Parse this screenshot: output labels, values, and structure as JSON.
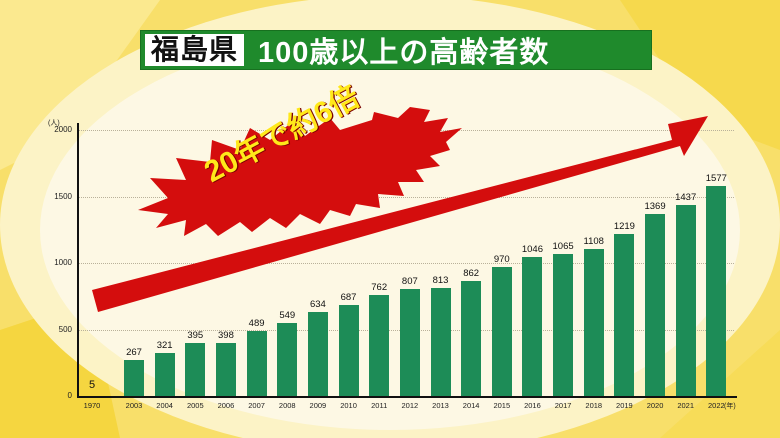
{
  "title": {
    "prefecture": "福島県",
    "main": "100歳以上の高齢者数"
  },
  "callout": {
    "text": "20年で約6倍"
  },
  "colors": {
    "bar": "#1d8c57",
    "title_bg": "#1f8a2c",
    "arrow": "#d40d0d",
    "callout_text": "#ffe81a",
    "background": "#f7e27a"
  },
  "axis": {
    "y_unit": "(人)",
    "x_unit": "(年)",
    "y_ticks": [
      "0",
      "500",
      "1000",
      "1500",
      "2000"
    ]
  },
  "chart_data": {
    "type": "bar",
    "title": "福島県 100歳以上の高齢者数",
    "annotation": "20年で約6倍",
    "xlabel": "(年)",
    "ylabel": "(人)",
    "ylim": [
      0,
      2000
    ],
    "y_ticks": [
      0,
      500,
      1000,
      1500,
      2000
    ],
    "grid": true,
    "categories": [
      "1970",
      "2003",
      "2004",
      "2005",
      "2006",
      "2007",
      "2008",
      "2009",
      "2010",
      "2011",
      "2012",
      "2013",
      "2014",
      "2015",
      "2016",
      "2017",
      "2018",
      "2019",
      "2020",
      "2021",
      "2022"
    ],
    "values": [
      5,
      267,
      321,
      395,
      398,
      489,
      549,
      634,
      687,
      762,
      807,
      813,
      862,
      970,
      1046,
      1065,
      1108,
      1219,
      1369,
      1437,
      1577
    ],
    "labels": [
      "5",
      "267",
      "321",
      "395",
      "398",
      "489",
      "549",
      "634",
      "687",
      "762",
      "807",
      "813",
      "862",
      "970",
      "1046",
      "1065",
      "1108",
      "1219",
      "1369",
      "1437",
      "1577"
    ]
  }
}
